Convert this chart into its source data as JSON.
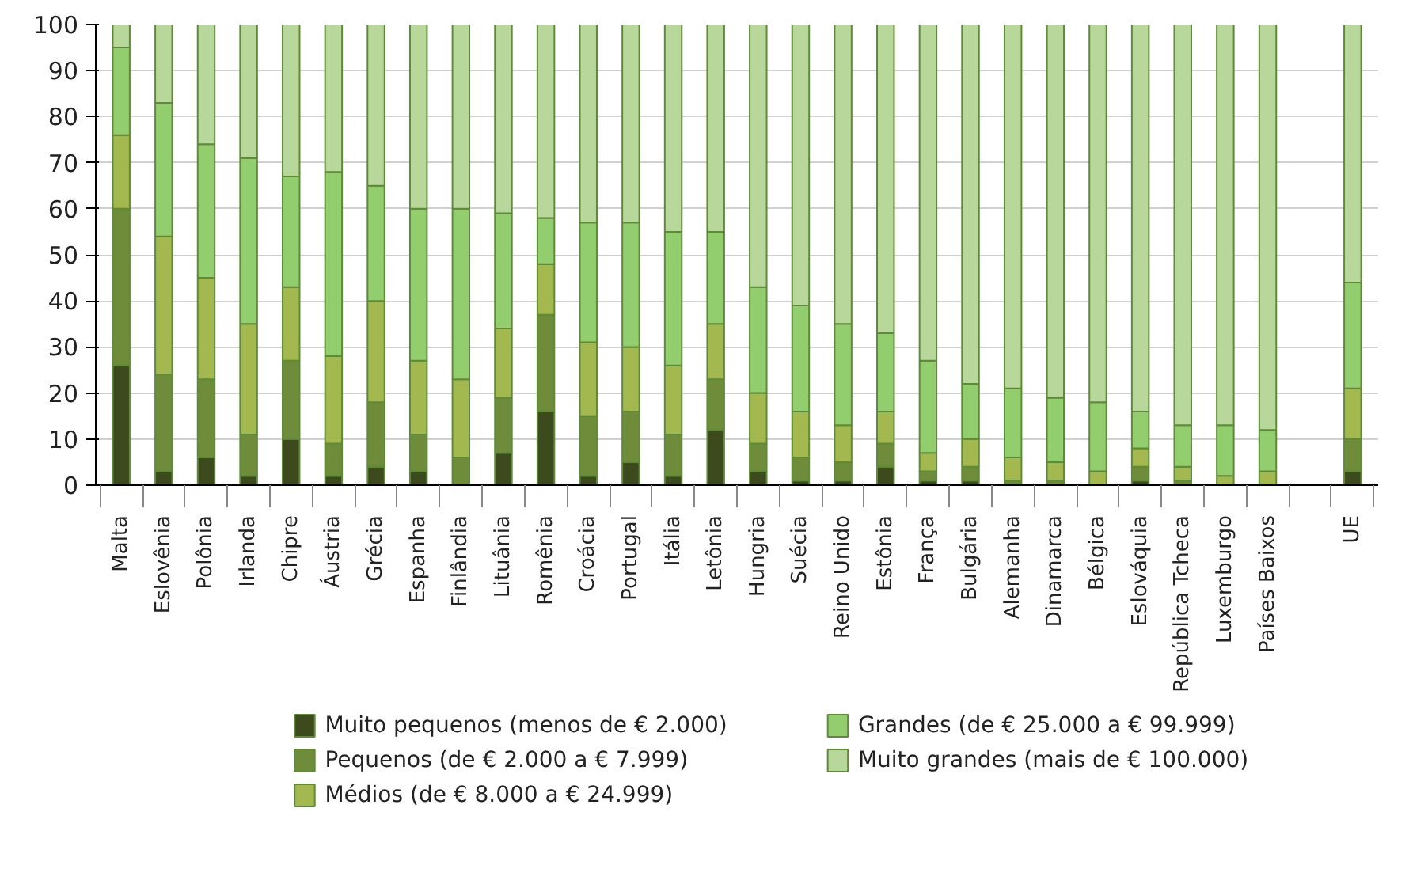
{
  "chart_data": {
    "type": "bar",
    "stacked": true,
    "categories": [
      "Malta",
      "Eslovênia",
      "Polônia",
      "Irlanda",
      "Chipre",
      "Áustria",
      "Grécia",
      "Espanha",
      "Finlândia",
      "Lituânia",
      "Romênia",
      "Croácia",
      "Portugal",
      "Itália",
      "Letônia",
      "Hungria",
      "Suécia",
      "Reino Unido",
      "Estônia",
      "França",
      "Bulgária",
      "Alemanha",
      "Dinamarca",
      "Bélgica",
      "Eslováquia",
      "República Tcheca",
      "Luxemburgo",
      "Países Baixos",
      null,
      "UE"
    ],
    "series": [
      {
        "name": "Muito pequenos (menos de € 2.000)",
        "color": "#3c4a1e",
        "values": [
          26,
          3,
          6,
          2,
          10,
          2,
          4,
          3,
          0,
          7,
          16,
          2,
          5,
          2,
          12,
          3,
          1,
          1,
          4,
          1,
          1,
          0,
          0,
          0,
          1,
          0,
          0,
          0,
          null,
          3
        ]
      },
      {
        "name": "Pequenos (de € 2.000 a € 7.999)",
        "color": "#6e8c3a",
        "values": [
          34,
          21,
          17,
          9,
          17,
          7,
          14,
          8,
          6,
          12,
          21,
          13,
          11,
          9,
          11,
          6,
          5,
          4,
          5,
          2,
          3,
          1,
          1,
          0,
          3,
          1,
          0,
          0,
          null,
          7
        ]
      },
      {
        "name": "Médios (de € 8.000 a € 24.999)",
        "color": "#a3b84e",
        "values": [
          16,
          30,
          22,
          24,
          16,
          19,
          22,
          16,
          17,
          15,
          11,
          16,
          14,
          15,
          12,
          11,
          10,
          8,
          7,
          4,
          6,
          5,
          4,
          3,
          4,
          3,
          2,
          3,
          null,
          11
        ]
      },
      {
        "name": "Grandes (de € 25.000 a € 99.999)",
        "color": "#92cd6e",
        "values": [
          19,
          29,
          29,
          36,
          24,
          40,
          25,
          33,
          37,
          25,
          10,
          26,
          27,
          29,
          20,
          23,
          23,
          22,
          17,
          20,
          12,
          15,
          14,
          15,
          8,
          9,
          11,
          9,
          null,
          23
        ]
      },
      {
        "name": "Muito grandes (mais de € 100.000)",
        "color": "#b8d79b",
        "values": [
          5,
          17,
          26,
          29,
          33,
          32,
          35,
          40,
          40,
          41,
          42,
          43,
          43,
          45,
          45,
          57,
          61,
          65,
          67,
          73,
          78,
          79,
          81,
          82,
          84,
          87,
          87,
          88,
          null,
          56
        ]
      }
    ],
    "ylim": [
      0,
      100
    ],
    "yticks": [
      0,
      10,
      20,
      30,
      40,
      50,
      60,
      70,
      80,
      90,
      100
    ],
    "grid": "y",
    "legend": "bottom"
  }
}
